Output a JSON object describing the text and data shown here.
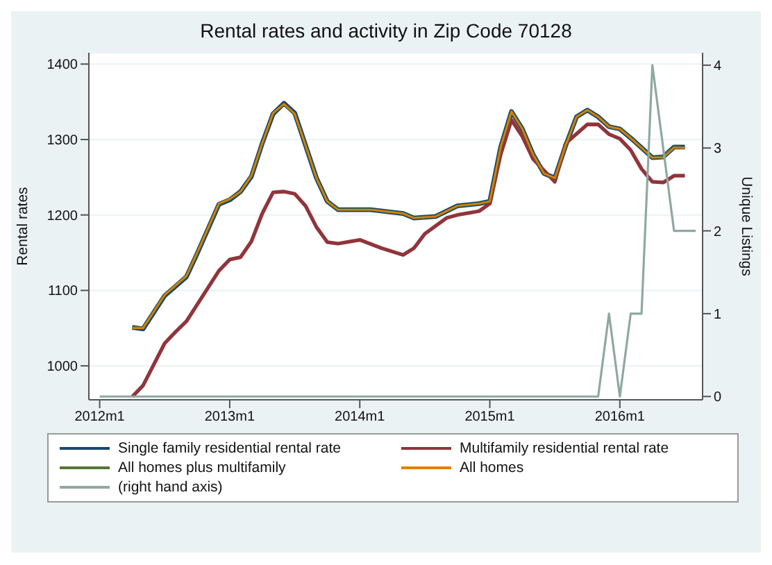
{
  "chart_data": {
    "type": "line",
    "title": "Rental rates and activity in Zip Code 70128",
    "ylabel": "Rental rates",
    "y2label": "Unique Listings",
    "xlim": [
      "2011-12",
      "2016-08-20"
    ],
    "xticks": [
      {
        "value": "2012-01",
        "label": "2012m1"
      },
      {
        "value": "2013-01",
        "label": "2013m1"
      },
      {
        "value": "2014-01",
        "label": "2014m1"
      },
      {
        "value": "2015-01",
        "label": "2015m1"
      },
      {
        "value": "2016-01",
        "label": "2016m1"
      }
    ],
    "ylim": [
      955,
      1415
    ],
    "yticks": [
      1000,
      1100,
      1200,
      1300,
      1400
    ],
    "y2lim": [
      -0.04,
      4.15
    ],
    "y2ticks": [
      0,
      1,
      2,
      3,
      4
    ],
    "grid": "y",
    "legend": "bottom",
    "marker": "none",
    "line_style": "solid",
    "series": [
      {
        "name": "Single family residential rental rate",
        "color": "#1a476f",
        "x": [
          "2012-04",
          "2012-05",
          "2012-06",
          "2012-07",
          "2012-09",
          "2012-10",
          "2012-12",
          "2013-01",
          "2013-02",
          "2013-03",
          "2013-04",
          "2013-05",
          "2013-06",
          "2013-07",
          "2013-08",
          "2013-09",
          "2013-10",
          "2013-11",
          "2014-02",
          "2014-05",
          "2014-06",
          "2014-08",
          "2014-10",
          "2014-12",
          "2015-01",
          "2015-02",
          "2015-03",
          "2015-04",
          "2015-05",
          "2015-06",
          "2015-07",
          "2015-08",
          "2015-09",
          "2015-10",
          "2015-11",
          "2015-12",
          "2016-01",
          "2016-02",
          "2016-04",
          "2016-05",
          "2016-06",
          "2016-07"
        ],
        "values": [
          1051,
          1049,
          1071,
          1093,
          1118,
          1149,
          1214,
          1220,
          1231,
          1251,
          1295,
          1334,
          1348,
          1335,
          1292,
          1249,
          1218,
          1207,
          1207,
          1202,
          1196,
          1198,
          1212,
          1215,
          1218,
          1290,
          1337,
          1314,
          1280,
          1255,
          1249,
          1292,
          1330,
          1339,
          1330,
          1317,
          1314,
          1302,
          1276,
          1277,
          1290,
          1290
        ]
      },
      {
        "name": "Multifamily residential rental rate",
        "color": "#90353b",
        "x": [
          "2012-04",
          "2012-05",
          "2012-07",
          "2012-08",
          "2012-09",
          "2012-12",
          "2013-01",
          "2013-02",
          "2013-03",
          "2013-04",
          "2013-05",
          "2013-06",
          "2013-07",
          "2013-08",
          "2013-09",
          "2013-10",
          "2013-11",
          "2014-01",
          "2014-03",
          "2014-05",
          "2014-06",
          "2014-07",
          "2014-09",
          "2014-10",
          "2014-12",
          "2015-01",
          "2015-02",
          "2015-03",
          "2015-04",
          "2015-05",
          "2015-07",
          "2015-08",
          "2015-10",
          "2015-11",
          "2015-12",
          "2016-01",
          "2016-02",
          "2016-03",
          "2016-04",
          "2016-05",
          "2016-06",
          "2016-07"
        ],
        "values": [
          959,
          974,
          1030,
          1045,
          1059,
          1126,
          1141,
          1144,
          1165,
          1202,
          1230,
          1231,
          1228,
          1212,
          1184,
          1164,
          1162,
          1167,
          1156,
          1147,
          1156,
          1175,
          1196,
          1200,
          1205,
          1215,
          1280,
          1326,
          1304,
          1274,
          1244,
          1295,
          1320,
          1320,
          1307,
          1301,
          1286,
          1261,
          1244,
          1243,
          1252,
          1252
        ]
      },
      {
        "name": "All homes plus multifamily",
        "color": "#55752f",
        "x": [
          "2012-04",
          "2012-05",
          "2012-06",
          "2012-07",
          "2012-09",
          "2012-10",
          "2012-12",
          "2013-01",
          "2013-02",
          "2013-03",
          "2013-04",
          "2013-05",
          "2013-06",
          "2013-07",
          "2013-08",
          "2013-09",
          "2013-10",
          "2013-11",
          "2014-02",
          "2014-05",
          "2014-06",
          "2014-08",
          "2014-10",
          "2014-12",
          "2015-01",
          "2015-02",
          "2015-03",
          "2015-04",
          "2015-05",
          "2015-06",
          "2015-07",
          "2015-08",
          "2015-09",
          "2015-10",
          "2015-11",
          "2015-12",
          "2016-01",
          "2016-02",
          "2016-04",
          "2016-05",
          "2016-06",
          "2016-07"
        ],
        "values": [
          1051,
          1050,
          1072,
          1094,
          1119,
          1150,
          1215,
          1221,
          1231,
          1252,
          1295,
          1335,
          1347,
          1334,
          1292,
          1249,
          1218,
          1207,
          1207,
          1202,
          1196,
          1198,
          1212,
          1215,
          1218,
          1290,
          1337,
          1314,
          1280,
          1255,
          1249,
          1292,
          1330,
          1339,
          1330,
          1317,
          1314,
          1302,
          1276,
          1278,
          1290,
          1289
        ]
      },
      {
        "name": "All homes",
        "color": "#e37e00",
        "x": [
          "2012-04",
          "2012-05",
          "2012-06",
          "2012-07",
          "2012-09",
          "2012-10",
          "2012-12",
          "2013-01",
          "2013-02",
          "2013-03",
          "2013-04",
          "2013-05",
          "2013-06",
          "2013-07",
          "2013-08",
          "2013-09",
          "2013-10",
          "2013-11",
          "2014-02",
          "2014-05",
          "2014-06",
          "2014-08",
          "2014-10",
          "2014-12",
          "2015-01",
          "2015-02",
          "2015-03",
          "2015-04",
          "2015-05",
          "2015-06",
          "2015-07",
          "2015-08",
          "2015-09",
          "2015-10",
          "2015-11",
          "2015-12",
          "2016-01",
          "2016-02",
          "2016-04",
          "2016-05",
          "2016-06",
          "2016-07"
        ],
        "values": [
          1050,
          1050,
          1072,
          1094,
          1119,
          1150,
          1215,
          1221,
          1231,
          1252,
          1295,
          1335,
          1347,
          1334,
          1292,
          1249,
          1218,
          1207,
          1207,
          1202,
          1196,
          1198,
          1212,
          1215,
          1218,
          1290,
          1337,
          1314,
          1280,
          1255,
          1249,
          1292,
          1330,
          1339,
          1330,
          1317,
          1314,
          1302,
          1276,
          1276,
          1289,
          1289
        ]
      },
      {
        "name": "(right hand axis)",
        "color": "#8fa8a2",
        "axis": "y2",
        "x": [
          "2012-01",
          "2015-11",
          "2015-12",
          "2016-01",
          "2016-02",
          "2016-03",
          "2016-04",
          "2016-05",
          "2016-06",
          "2016-08"
        ],
        "values": [
          0,
          0,
          1,
          0,
          1,
          1,
          4,
          3,
          2,
          2
        ]
      }
    ]
  }
}
